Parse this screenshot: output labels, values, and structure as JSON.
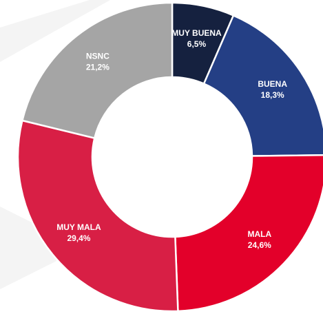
{
  "chart_data": {
    "type": "donut",
    "categories": [
      "MUY BUENA",
      "BUENA",
      "MALA",
      "MUY MALA",
      "NSNC"
    ],
    "values": [
      6.5,
      18.3,
      24.6,
      29.4,
      21.2
    ],
    "value_labels": [
      "6,5%",
      "18,3%",
      "24,6%",
      "29,4%",
      "21,2%"
    ],
    "colors": [
      "#15213f",
      "#243f85",
      "#e3002a",
      "#d81f45",
      "#a5a5a5"
    ]
  }
}
